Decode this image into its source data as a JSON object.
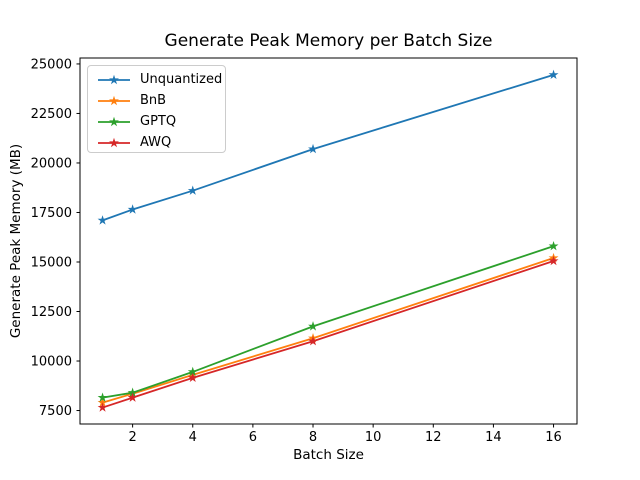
{
  "figure": {
    "background": "#ffffff"
  },
  "chart_data": {
    "type": "line",
    "title": "Generate Peak Memory per Batch Size",
    "xlabel": "Batch Size",
    "ylabel": "Generate Peak Memory (MB)",
    "x": [
      1,
      2,
      4,
      8,
      16
    ],
    "series": [
      {
        "name": "Unquantized",
        "color": "#1f77b4",
        "marker": "star",
        "values": [
          17100,
          17650,
          18600,
          20700,
          24450
        ]
      },
      {
        "name": "BnB",
        "color": "#ff7f0e",
        "marker": "star",
        "values": [
          7900,
          8350,
          9300,
          11150,
          15200
        ]
      },
      {
        "name": "GPTQ",
        "color": "#2ca02c",
        "marker": "star",
        "values": [
          8150,
          8400,
          9450,
          11750,
          15800
        ]
      },
      {
        "name": "AWQ",
        "color": "#d62728",
        "marker": "star",
        "values": [
          7650,
          8150,
          9150,
          11000,
          15050
        ]
      }
    ],
    "xticks": [
      2,
      4,
      6,
      8,
      10,
      12,
      14,
      16
    ],
    "yticks": [
      7500,
      10000,
      12500,
      15000,
      17500,
      20000,
      22500,
      25000
    ],
    "xlim": [
      0.25,
      16.78
    ],
    "ylim": [
      6820,
      25300
    ],
    "grid": false,
    "legend_position": "upper left",
    "axis_color": "#000000"
  }
}
